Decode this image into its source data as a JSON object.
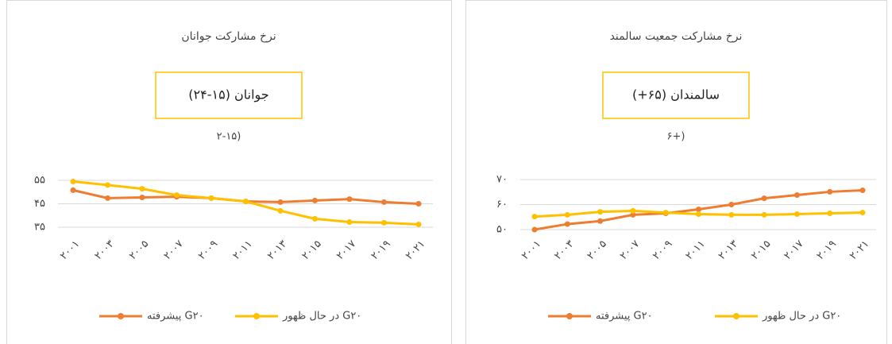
{
  "chart_data": [
    {
      "type": "line",
      "title": "نرخ مشارکت جوانان",
      "box_label": "جوانان (۱۵-۲۴)",
      "annotation": "۲-۱۵)",
      "categories": [
        "۲۰۰۱",
        "۲۰۰۳",
        "۲۰۰۵",
        "۲۰۰۷",
        "۲۰۰۹",
        "۲۰۱۱",
        "۲۰۱۳",
        "۲۰۱۵",
        "۲۰۱۷",
        "۲۰۱۹",
        "۲۰۲۱"
      ],
      "series": [
        {
          "name": "پیشرفته G۲۰",
          "color": "#ed7d31",
          "values": [
            50.8,
            47.4,
            47.7,
            48,
            47.4,
            46,
            45.7,
            46.4,
            47,
            45.7,
            45
          ]
        },
        {
          "name": "در حال ظهور G۲۰",
          "color": "#ffc000",
          "values": [
            54.5,
            53,
            51.4,
            48.7,
            47.4,
            46,
            42,
            38.6,
            37.2,
            36.9,
            36.2
          ]
        }
      ],
      "ylim": [
        35,
        55
      ],
      "yticks": [
        {
          "value": 35,
          "label": "۳۵"
        },
        {
          "value": 45,
          "label": "۴۵"
        },
        {
          "value": 55,
          "label": "۵۵"
        }
      ],
      "grid": true,
      "legend": "bottom"
    },
    {
      "type": "line",
      "title": "نرخ مشارکت جمعیت سالمند",
      "box_label": "سالمندان (۶۵+)",
      "annotation": "۶+)",
      "categories": [
        "۲۰۰۱",
        "۲۰۰۳",
        "۲۰۰۵",
        "۲۰۰۷",
        "۲۰۰۹",
        "۲۰۱۱",
        "۲۰۱۳",
        "۲۰۱۵",
        "۲۰۱۷",
        "۲۰۱۹",
        "۲۰۲۱"
      ],
      "series": [
        {
          "name": "پیشرفته G۲۰",
          "color": "#ed7d31",
          "values": [
            50,
            52.2,
            53.4,
            55.9,
            56.5,
            58.1,
            60,
            62.5,
            63.8,
            65.1,
            65.7
          ]
        },
        {
          "name": "در حال ظهور G۲۰",
          "color": "#ffc000",
          "values": [
            55.2,
            55.9,
            57.1,
            57.5,
            56.8,
            56.2,
            55.9,
            55.9,
            56.2,
            56.5,
            56.8
          ]
        }
      ],
      "ylim": [
        50,
        70
      ],
      "yticks": [
        {
          "value": 50,
          "label": "۵۰"
        },
        {
          "value": 60,
          "label": "۶۰"
        },
        {
          "value": 70,
          "label": "۷۰"
        }
      ],
      "grid": true,
      "legend": "bottom"
    }
  ]
}
